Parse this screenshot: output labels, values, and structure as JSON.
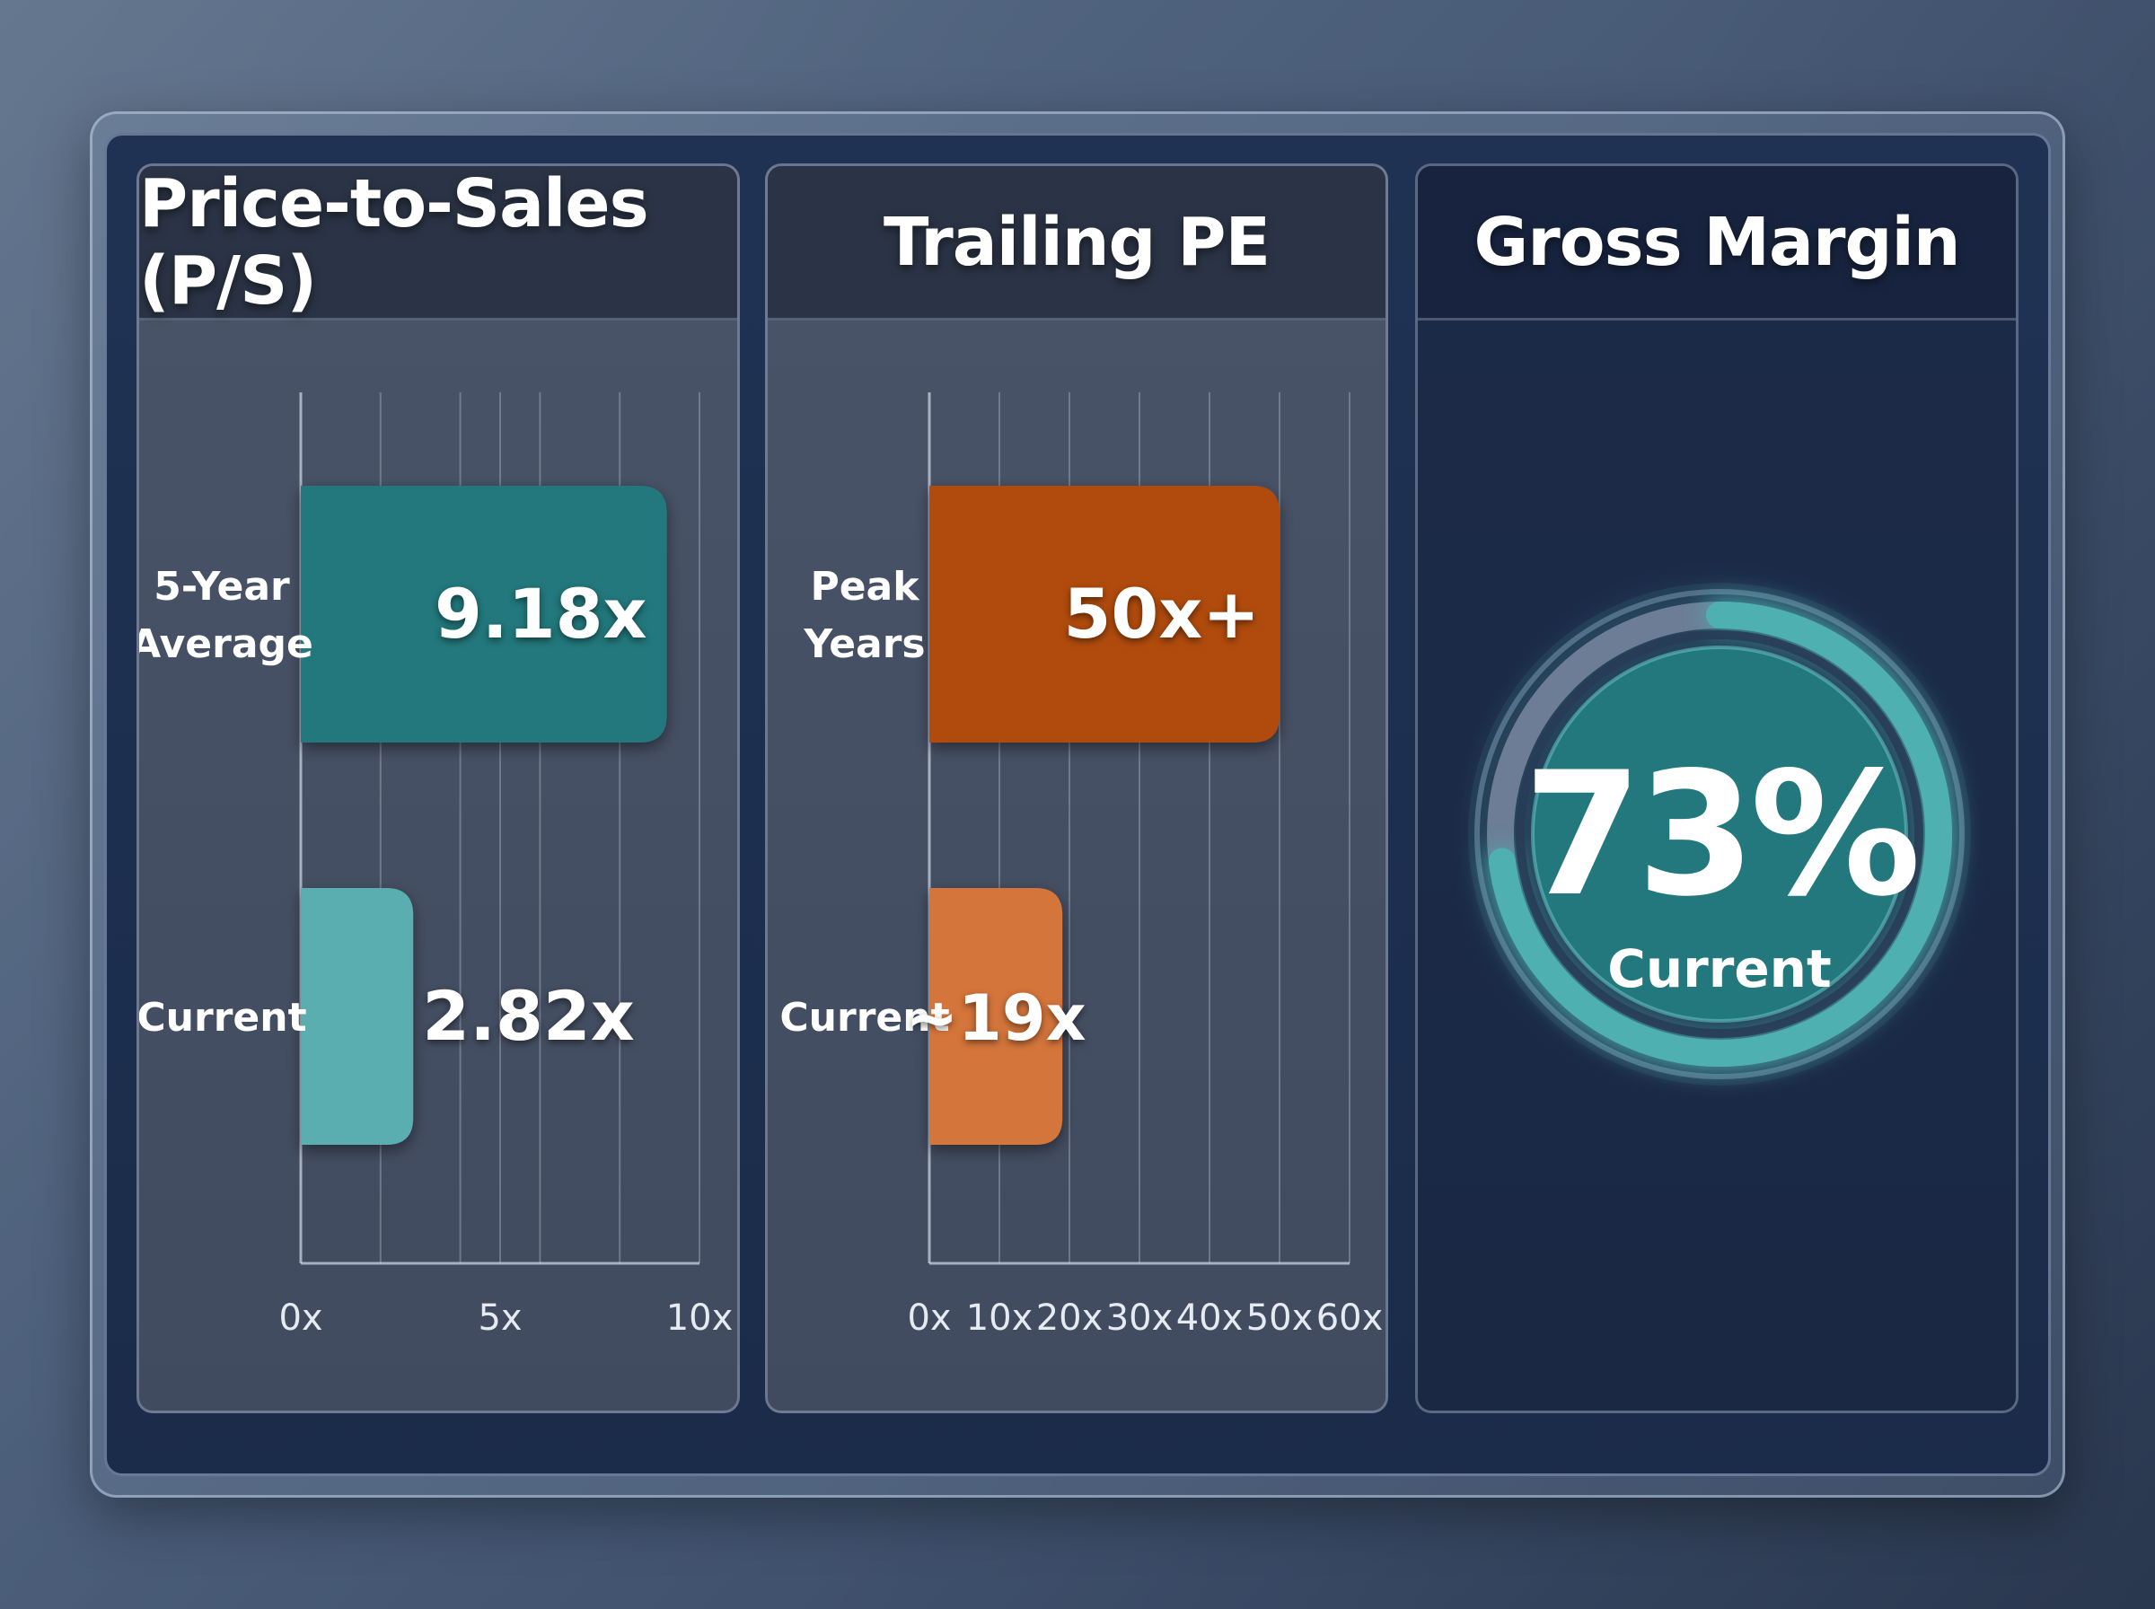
{
  "colors": {
    "teal": "#22787c",
    "teal_light": "#5aaeb0",
    "orange": "#b04c0f",
    "orange_light": "#d4743a",
    "ring": "#4fb0b2",
    "ring_track": "#6c7d95"
  },
  "chart_data": [
    {
      "type": "bar",
      "orientation": "horizontal",
      "title": "Price-to-Sales (P/S)",
      "categories": [
        "5-Year\nAverage",
        "Current"
      ],
      "values": [
        9.18,
        2.82
      ],
      "value_labels": [
        "9.18x",
        "2.82x"
      ],
      "xlim": [
        0,
        10
      ],
      "ticks": [
        {
          "value": 0,
          "label": "0x"
        },
        {
          "value": 5,
          "label": "5x"
        },
        {
          "value": 10,
          "label": "10x"
        }
      ],
      "gridlines": [
        2,
        4,
        5,
        6,
        8,
        10
      ],
      "bar_colors": [
        "#22787c",
        "#5aaeb0"
      ],
      "grid": true
    },
    {
      "type": "bar",
      "orientation": "horizontal",
      "title": "Trailing PE",
      "categories": [
        "Peak\nYears",
        "Current"
      ],
      "values": [
        50,
        19
      ],
      "value_labels": [
        "50x+",
        "~19x"
      ],
      "xlim": [
        0,
        60
      ],
      "ticks": [
        {
          "value": 0,
          "label": "0x"
        },
        {
          "value": 10,
          "label": "10x"
        },
        {
          "value": 20,
          "label": "20x"
        },
        {
          "value": 30,
          "label": "30x"
        },
        {
          "value": 40,
          "label": "40x"
        },
        {
          "value": 50,
          "label": "50x"
        },
        {
          "value": 60,
          "label": "60x"
        }
      ],
      "gridlines": [
        10,
        20,
        30,
        40,
        50,
        60
      ],
      "bar_colors": [
        "#b04c0f",
        "#d4743a"
      ],
      "grid": true
    },
    {
      "type": "gauge",
      "title": "Gross Margin",
      "value": 73,
      "value_label": "73%",
      "sublabel": "Current",
      "max": 100
    }
  ]
}
